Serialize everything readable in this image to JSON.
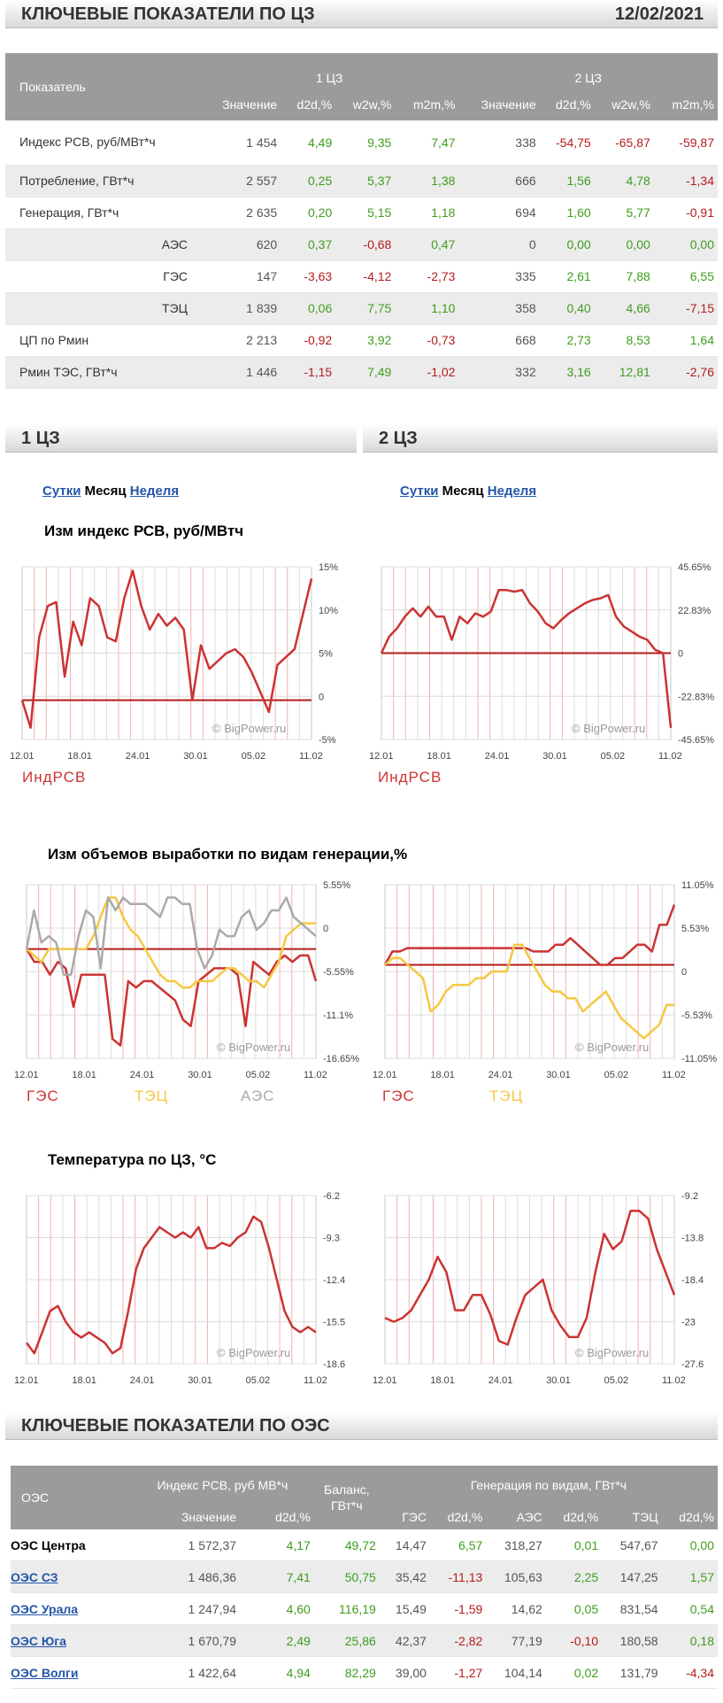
{
  "header": {
    "title": "КЛЮЧЕВЫЕ ПОКАЗАТЕЛИ ПО ЦЗ",
    "date": "12/02/2021"
  },
  "main_table": {
    "indicator_header": "Показатель",
    "zone1": "1 ЦЗ",
    "zone2": "2 ЦЗ",
    "col_headers": [
      "Значение",
      "d2d,%",
      "w2w,%",
      "m2m,%",
      "Значение",
      "d2d,%",
      "w2w,%",
      "m2m,%"
    ],
    "rows": [
      {
        "label": "Индекс РСВ, руб/МВт*ч",
        "values": [
          "1 454",
          "4,49",
          "9,35",
          "7,47",
          "338",
          "-54,75",
          "-65,87",
          "-59,87"
        ]
      },
      {
        "label": "Потребление, ГВт*ч",
        "values": [
          "2 557",
          "0,25",
          "5,37",
          "1,38",
          "666",
          "1,56",
          "4,78",
          "-1,34"
        ]
      },
      {
        "label": "Генерация, ГВт*ч",
        "values": [
          "2 635",
          "0,20",
          "5,15",
          "1,18",
          "694",
          "1,60",
          "5,77",
          "-0,91"
        ]
      },
      {
        "label": "АЭС",
        "values": [
          "620",
          "0,37",
          "-0,68",
          "0,47",
          "0",
          "0,00",
          "0,00",
          "0,00"
        ]
      },
      {
        "label": "ГЭС",
        "values": [
          "147",
          "-3,63",
          "-4,12",
          "-2,73",
          "335",
          "2,61",
          "7,88",
          "6,55"
        ]
      },
      {
        "label": "ТЭЦ",
        "values": [
          "1 839",
          "0,06",
          "7,75",
          "1,10",
          "358",
          "0,40",
          "4,66",
          "-7,15"
        ]
      },
      {
        "label": "ЦП по Рмин",
        "values": [
          "2 213",
          "-0,92",
          "3,92",
          "-0,73",
          "668",
          "2,73",
          "8,53",
          "1,64"
        ]
      },
      {
        "label": "Рмин ТЭС, ГВт*ч",
        "values": [
          "1 446",
          "-1,15",
          "7,49",
          "-1,02",
          "332",
          "3,16",
          "12,81",
          "-2,76"
        ]
      }
    ]
  },
  "zones": {
    "left_title": "1 ЦЗ",
    "right_title": "2 ЦЗ",
    "link_day": "Сутки",
    "link_month": "Месяц",
    "link_week": "Неделя"
  },
  "section_titles": {
    "rsv": "Изм индекс РСВ, руб/МВтч",
    "gen": "Изм объемов выработки по видам генерации,%",
    "temp": "Температура по ЦЗ, °C"
  },
  "watermark": "© BigPower.ru",
  "legend_labels": {
    "indrsv": "ИндРСВ",
    "ges": "ГЭС",
    "tec": "ТЭЦ",
    "aes": "АЭС"
  },
  "colors": {
    "ges": "#cc3333",
    "tec": "#f5c842",
    "aes": "#aaaaaa",
    "pos": "#3f9c1e",
    "neg": "#b51c1c",
    "header_bg": "#9b9b9b"
  },
  "chart_data": [
    {
      "id": "rsv1",
      "type": "line",
      "title": "Изм индекс РСВ, руб/МВтч",
      "zone": "1 ЦЗ",
      "x_ticks": [
        "12.01",
        "18.01",
        "24.01",
        "30.01",
        "05.02",
        "11.02"
      ],
      "y_ticks": [
        "15%",
        "10%",
        "5%",
        "0",
        "-5%"
      ],
      "ylim": [
        -5,
        17
      ],
      "series": [
        {
          "name": "ИндРСВ",
          "color": "#cc3333",
          "values": [
            0,
            -3.5,
            8,
            12,
            12.5,
            3,
            10,
            7,
            13,
            12,
            8,
            7.5,
            13,
            16.5,
            12,
            9,
            11,
            9.5,
            10.5,
            9,
            0,
            7,
            4,
            5,
            6,
            6.5,
            5.5,
            3.5,
            1,
            -1.5,
            4.5,
            5.5,
            6.5,
            11,
            15.5
          ]
        }
      ]
    },
    {
      "id": "rsv2",
      "type": "line",
      "title": "Изм индекс РСВ, руб/МВтч",
      "zone": "2 ЦЗ",
      "x_ticks": [
        "12.01",
        "18.01",
        "24.01",
        "30.01",
        "05.02",
        "11.02"
      ],
      "y_ticks": [
        "45.65%",
        "22.83%",
        "0",
        "-22.83%",
        "-45.65%"
      ],
      "ylim": [
        -52,
        52
      ],
      "series": [
        {
          "name": "ИндРСВ",
          "color": "#cc3333",
          "values": [
            0,
            10,
            15,
            22,
            27,
            22,
            28,
            22,
            22,
            8,
            22,
            18,
            24,
            22,
            25,
            38,
            38,
            37,
            38,
            30,
            25,
            18,
            15,
            20,
            24,
            27,
            30,
            32,
            33,
            35,
            22,
            16,
            13,
            10,
            8,
            2,
            0,
            -45
          ]
        }
      ]
    },
    {
      "id": "gen1",
      "type": "line",
      "title": "Изм объемов выработки по видам генерации,%",
      "zone": "1 ЦЗ",
      "x_ticks": [
        "12.01",
        "18.01",
        "24.01",
        "30.01",
        "05.02",
        "11.02"
      ],
      "y_ticks": [
        "5.55%",
        "0",
        "-5.55%",
        "-11.1%",
        "-16.65%"
      ],
      "ylim": [
        -17,
        10
      ],
      "series": [
        {
          "name": "ГЭС",
          "color": "#cc3333",
          "values": [
            0,
            -2,
            -2,
            -4,
            -2,
            -3,
            -9,
            -4,
            -4,
            -4,
            -4,
            -14,
            -15,
            -5,
            -6,
            -5,
            -5,
            -6,
            -7,
            -8,
            -11,
            -12,
            -5,
            -4,
            -3,
            -3,
            -3,
            -4,
            -12,
            -2,
            -3,
            -4,
            -2,
            -1,
            -2,
            -1,
            -1,
            -5
          ]
        },
        {
          "name": "ТЭЦ",
          "color": "#f5c842",
          "values": [
            0,
            -1,
            -2,
            0,
            0,
            0,
            0,
            0,
            0,
            2,
            5,
            8,
            8,
            5,
            3,
            2,
            0,
            -2,
            -4,
            -5,
            -5,
            -6,
            -6,
            -5,
            -5,
            -5,
            -4,
            -3,
            -3,
            -4,
            -5,
            -5,
            -6,
            -4,
            -2,
            2,
            3,
            4,
            4,
            4
          ]
        },
        {
          "name": "АЭС",
          "color": "#aaaaaa",
          "values": [
            0,
            6,
            1,
            2,
            1,
            -4,
            -4,
            2,
            6,
            5,
            -3,
            8,
            6,
            8,
            7,
            7,
            7,
            6,
            5,
            8,
            8,
            7,
            7,
            0,
            -3,
            -1,
            3,
            2,
            2,
            5,
            6,
            3,
            4,
            6,
            6,
            8,
            5,
            4,
            3,
            2
          ]
        }
      ]
    },
    {
      "id": "gen2",
      "type": "line",
      "title": "Изм объемов выработки по видам генерации,%",
      "zone": "2 ЦЗ",
      "x_ticks": [
        "12.01",
        "18.01",
        "24.01",
        "30.01",
        "05.02",
        "11.02"
      ],
      "y_ticks": [
        "11.05%",
        "5.53%",
        "0",
        "-5.53%",
        "-11.05%"
      ],
      "ylim": [
        -14,
        12
      ],
      "series": [
        {
          "name": "ГЭС",
          "color": "#cc3333",
          "values": [
            0,
            2,
            2,
            2.5,
            2.5,
            2.5,
            2.5,
            2.5,
            2.5,
            2.5,
            2.5,
            2.5,
            2.5,
            2.5,
            2.5,
            2.5,
            2.5,
            2.5,
            2.5,
            2.5,
            2,
            2,
            2,
            3,
            3,
            4,
            3,
            2,
            1,
            0,
            0,
            1,
            1,
            2,
            3,
            3,
            2,
            6,
            6,
            9
          ]
        },
        {
          "name": "ТЭЦ",
          "color": "#f5c842",
          "values": [
            0,
            1,
            1,
            0,
            -1,
            -2,
            -7,
            -6,
            -4,
            -3,
            -3,
            -3,
            -2,
            -2,
            -1,
            -1,
            -1,
            3,
            3,
            1,
            -1,
            -3,
            -4,
            -4,
            -5,
            -5,
            -7,
            -6,
            -5,
            -4,
            -6,
            -8,
            -9,
            -10,
            -11,
            -10,
            -9,
            -6,
            -6
          ]
        }
      ]
    },
    {
      "id": "temp1",
      "type": "line",
      "title": "Температура по ЦЗ, °C",
      "zone": "1 ЦЗ",
      "x_ticks": [
        "12.01",
        "18.01",
        "24.01",
        "30.01",
        "05.02",
        "11.02"
      ],
      "y_ticks": [
        "-6.2",
        "-9.3",
        "-12.4",
        "-15.5",
        "-18.6"
      ],
      "ylim": [
        -19,
        -3
      ],
      "series": [
        {
          "name": "Температура",
          "color": "#cc3333",
          "values": [
            -17,
            -18,
            -16,
            -14,
            -13.5,
            -15,
            -16,
            -16.5,
            -16,
            -16.5,
            -17,
            -18,
            -17.5,
            -14,
            -10,
            -8,
            -7,
            -6,
            -6.5,
            -7,
            -6.5,
            -7,
            -6,
            -8,
            -8,
            -7.5,
            -7.8,
            -7,
            -6.5,
            -5,
            -5.5,
            -8,
            -11,
            -14,
            -15.5,
            -16,
            -15.5,
            -16
          ]
        }
      ]
    },
    {
      "id": "temp2",
      "type": "line",
      "title": "Температура по ЦЗ, °C",
      "zone": "2 ЦЗ",
      "x_ticks": [
        "12.01",
        "18.01",
        "24.01",
        "30.01",
        "05.02",
        "11.02"
      ],
      "y_ticks": [
        "-9.2",
        "-13.8",
        "-18.4",
        "-23",
        "-27.6"
      ],
      "ylim": [
        -31,
        -9
      ],
      "series": [
        {
          "name": "Температура",
          "color": "#cc3333",
          "values": [
            -25,
            -25.5,
            -25,
            -24,
            -22,
            -20,
            -17,
            -19,
            -24,
            -24,
            -22,
            -22,
            -24.5,
            -28,
            -28.5,
            -25,
            -22,
            -21,
            -20,
            -24,
            -26,
            -27.5,
            -27.5,
            -25,
            -19,
            -14,
            -16,
            -15,
            -11,
            -11,
            -12,
            -16,
            -19,
            -22
          ]
        }
      ]
    }
  ],
  "oes_section": {
    "title": "КЛЮЧЕВЫЕ ПОКАЗАТЕЛИ ПО ОЭС",
    "header_oes": "ОЭС",
    "header_rsv": "Индекс РСВ, руб МВ*ч",
    "header_balance": "Баланс, ГВт*ч",
    "header_gen": "Генерация по видам, ГВт*ч",
    "sub_headers": [
      "Значение",
      "d2d,%",
      "ГЭС",
      "d2d,%",
      "АЭС",
      "d2d,%",
      "ТЭЦ",
      "d2d,%"
    ],
    "rows": [
      {
        "name": "ОЭС Центра",
        "link": false,
        "values": [
          "1 572,37",
          "4,17",
          "49,72",
          "14,47",
          "6,57",
          "318,27",
          "0,01",
          "547,67",
          "0,00"
        ]
      },
      {
        "name": "ОЭС СЗ",
        "link": true,
        "values": [
          "1 486,36",
          "7,41",
          "50,75",
          "35,42",
          "-11,13",
          "105,63",
          "2,25",
          "147,25",
          "1,57"
        ]
      },
      {
        "name": "ОЭС Урала",
        "link": true,
        "values": [
          "1 247,94",
          "4,60",
          "116,19",
          "15,49",
          "-1,59",
          "14,62",
          "0,05",
          "831,54",
          "0,54"
        ]
      },
      {
        "name": "ОЭС Юга",
        "link": true,
        "values": [
          "1 670,79",
          "2,49",
          "25,86",
          "42,37",
          "-2,82",
          "77,19",
          "-0,10",
          "180,58",
          "0,18"
        ]
      },
      {
        "name": "ОЭС Волги",
        "link": true,
        "values": [
          "1 422,64",
          "4,94",
          "82,29",
          "39,00",
          "-1,27",
          "104,14",
          "0,02",
          "131,79",
          "-4,34"
        ]
      }
    ]
  }
}
